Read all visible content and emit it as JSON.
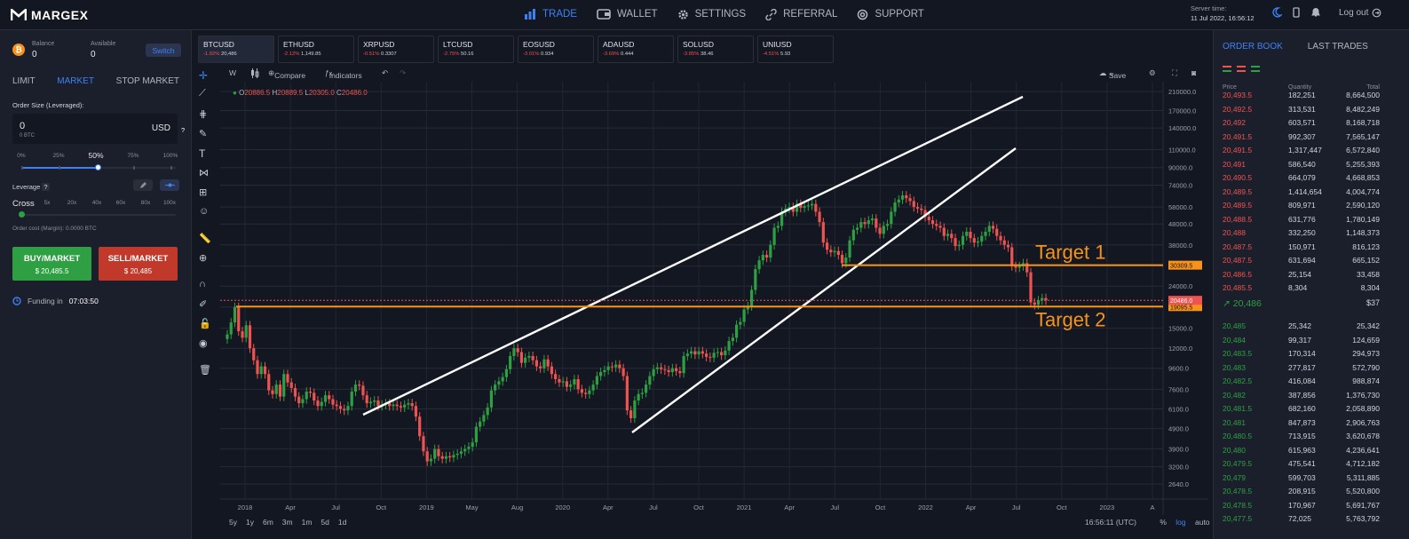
{
  "brand": {
    "name": "MARGEX"
  },
  "nav": [
    {
      "label": "TRADE",
      "icon": "bar-chart-icon",
      "active": true
    },
    {
      "label": "WALLET",
      "icon": "wallet-icon"
    },
    {
      "label": "SETTINGS",
      "icon": "gear-icon"
    },
    {
      "label": "REFERRAL",
      "icon": "link-icon"
    },
    {
      "label": "SUPPORT",
      "icon": "lifebuoy-icon"
    }
  ],
  "server": {
    "label": "Server time:",
    "value": "11 Jul 2022, 16:56:12"
  },
  "logout": "Log out",
  "balance": {
    "balance_label": "Balance",
    "balance_value": "0",
    "available_label": "Available",
    "available_value": "0",
    "switch_label": "Switch",
    "coin": "₿"
  },
  "order_tabs": [
    "LIMIT",
    "MARKET",
    "STOP MARKET"
  ],
  "order": {
    "size_label": "Order Size (Leveraged):",
    "size_value": "0",
    "size_sub": "0 BTC",
    "size_unit": "USD",
    "help": "?",
    "pcts": [
      "0%",
      "25%",
      "50%",
      "75%",
      "100%"
    ],
    "selected_pct": 50,
    "leverage_label": "Leverage",
    "leverage_help": "?",
    "cross_label": "Cross",
    "levs": [
      "5x",
      "20x",
      "40x",
      "60x",
      "80x",
      "100x"
    ],
    "cost_label": "Order cost (Margin): 0.0000 BTC"
  },
  "buy": {
    "label": "BUY/MARKET",
    "price": "$ 20,485.5"
  },
  "sell": {
    "label": "SELL/MARKET",
    "price": "$ 20,485"
  },
  "funding": {
    "label": "Funding in",
    "value": "07:03:50"
  },
  "tickers": [
    {
      "name": "BTCUSD",
      "change": "-1.92%",
      "price": "20,486",
      "active": true
    },
    {
      "name": "ETHUSD",
      "change": "-2.12%",
      "price": "1,149.85"
    },
    {
      "name": "XRPUSD",
      "change": "-0.51%",
      "price": "0.3307"
    },
    {
      "name": "LTCUSD",
      "change": "-2.75%",
      "price": "50.16"
    },
    {
      "name": "EOSUSD",
      "change": "-3.01%",
      "price": "0.934"
    },
    {
      "name": "ADAUSD",
      "change": "-3.69%",
      "price": "0.444"
    },
    {
      "name": "SOLUSD",
      "change": "-3.85%",
      "price": "38.46"
    },
    {
      "name": "UNIUSD",
      "change": "-4.51%",
      "price": "5.93"
    }
  ],
  "toolbar": {
    "interval": "W",
    "compare": "Compare",
    "indicators": "Indicators",
    "save": "Save"
  },
  "ohlc": {
    "o_label": "O",
    "o": "20886.5",
    "h_label": "H",
    "h": "20889.5",
    "l_label": "L",
    "l": "20305.0",
    "c_label": "C",
    "c": "20486.0"
  },
  "chart_data": {
    "type": "candlestick",
    "scale": "log",
    "y_ticks": [
      "210000.0",
      "170000.0",
      "140000.0",
      "110000.0",
      "90000.0",
      "74000.0",
      "58000.0",
      "48000.0",
      "38000.0",
      "30000.0",
      "24000.0",
      "19000.0",
      "15000.0",
      "12000.0",
      "9600.0",
      "7600.0",
      "6100.0",
      "4900.0",
      "3900.0",
      "3200.0",
      "2640.0"
    ],
    "x_ticks": [
      "2018",
      "Apr",
      "Jul",
      "Oct",
      "2019",
      "May",
      "Aug",
      "2020",
      "Apr",
      "Jul",
      "Oct",
      "2021",
      "Apr",
      "Jul",
      "Oct",
      "2022",
      "Apr",
      "Jul",
      "Oct",
      "2023",
      "A"
    ],
    "last_price": "20486.0",
    "levels": [
      {
        "label": "Target 1",
        "value": "30309.5"
      },
      {
        "label": "Target 2",
        "value": "19095.5"
      }
    ],
    "closes": [
      14000,
      16000,
      19000,
      14500,
      13500,
      15500,
      12000,
      10500,
      9000,
      9800,
      9000,
      7500,
      7200,
      8000,
      7000,
      9000,
      8200,
      7700,
      7000,
      6500,
      6800,
      7400,
      7300,
      6700,
      6300,
      6600,
      7100,
      6800,
      6400,
      6300,
      6100,
      6000,
      6300,
      7400,
      8000,
      7900,
      7100,
      6500,
      6600,
      6700,
      6300,
      6400,
      6500,
      6300,
      6400,
      6300,
      6200,
      6400,
      6500,
      6300,
      5600,
      4500,
      3800,
      3400,
      3500,
      3900,
      3600,
      3500,
      3600,
      3550,
      3650,
      3700,
      3800,
      3900,
      4000,
      4200,
      5000,
      5300,
      5700,
      6200,
      7500,
      8000,
      8300,
      8700,
      9500,
      11000,
      12000,
      11500,
      10200,
      10800,
      11000,
      10500,
      9800,
      9600,
      10600,
      9800,
      9000,
      8500,
      8200,
      8300,
      7800,
      8000,
      8500,
      7600,
      7300,
      7200,
      7500,
      8000,
      8800,
      9200,
      9400,
      9800,
      9700,
      10000,
      9600,
      8800,
      6000,
      5500,
      6700,
      7200,
      7300,
      8000,
      8800,
      9500,
      9700,
      9500,
      9400,
      9200,
      9600,
      9300,
      9100,
      11000,
      11300,
      11600,
      11200,
      11600,
      11300,
      10900,
      10800,
      11400,
      11500,
      11100,
      11700,
      13000,
      13500,
      15600,
      16100,
      18500,
      19200,
      23000,
      29000,
      32000,
      34000,
      33000,
      38000,
      46000,
      47000,
      55000,
      57000,
      58000,
      55000,
      60000,
      57500,
      58500,
      59000,
      60000,
      55000,
      49000,
      39000,
      36000,
      35000,
      35500,
      34000,
      31000,
      33000,
      40000,
      45000,
      46000,
      49000,
      48000,
      50000,
      51000,
      46000,
      43000,
      47000,
      48000,
      55000,
      61000,
      63000,
      66000,
      64000,
      62000,
      58000,
      57000,
      56000,
      52000,
      50000,
      48000,
      47000,
      46000,
      42000,
      43000,
      41000,
      37500,
      38000,
      42000,
      44000,
      41000,
      39000,
      39500,
      42000,
      44000,
      47000,
      45500,
      42000,
      40000,
      38000,
      37000,
      30000,
      29500,
      30000,
      31000,
      28000,
      20000,
      19500,
      20500,
      21000,
      20486
    ]
  },
  "bottom": {
    "timeframes": [
      "5y",
      "1y",
      "6m",
      "3m",
      "1m",
      "5d",
      "1d"
    ],
    "clock": "16:56:11 (UTC)",
    "pct": "%",
    "log": "log",
    "auto": "auto"
  },
  "orderbook": {
    "tabs": [
      "ORDER BOOK",
      "LAST TRADES"
    ],
    "headers": [
      "Price",
      "Quantity",
      "Total"
    ],
    "asks": [
      [
        "20,493.5",
        "182,251",
        "8,664,500"
      ],
      [
        "20,492.5",
        "313,531",
        "8,482,249"
      ],
      [
        "20,492",
        "603,571",
        "8,168,718"
      ],
      [
        "20,491.5",
        "992,307",
        "7,565,147"
      ],
      [
        "20,491.5",
        "1,317,447",
        "6,572,840"
      ],
      [
        "20,491",
        "586,540",
        "5,255,393"
      ],
      [
        "20,490.5",
        "664,079",
        "4,668,853"
      ],
      [
        "20,489.5",
        "1,414,654",
        "4,004,774"
      ],
      [
        "20,489.5",
        "809,971",
        "2,590,120"
      ],
      [
        "20,488.5",
        "631,776",
        "1,780,149"
      ],
      [
        "20,488",
        "332,250",
        "1,148,373"
      ],
      [
        "20,487.5",
        "150,971",
        "816,123"
      ],
      [
        "20,487.5",
        "631,694",
        "665,152"
      ],
      [
        "20,486.5",
        "25,154",
        "33,458"
      ],
      [
        "20,485.5",
        "8,304",
        "8,304"
      ]
    ],
    "mid_price": "20,486",
    "mid_usd": "$37",
    "bids": [
      [
        "20,485",
        "25,342",
        "25,342"
      ],
      [
        "20,484",
        "99,317",
        "124,659"
      ],
      [
        "20,483.5",
        "170,314",
        "294,973"
      ],
      [
        "20,483",
        "277,817",
        "572,790"
      ],
      [
        "20,482.5",
        "416,084",
        "988,874"
      ],
      [
        "20,482",
        "387,856",
        "1,376,730"
      ],
      [
        "20,481.5",
        "682,160",
        "2,058,890"
      ],
      [
        "20,481",
        "847,873",
        "2,906,763"
      ],
      [
        "20,480.5",
        "713,915",
        "3,620,678"
      ],
      [
        "20,480",
        "615,963",
        "4,236,641"
      ],
      [
        "20,479.5",
        "475,541",
        "4,712,182"
      ],
      [
        "20,479",
        "599,703",
        "5,311,885"
      ],
      [
        "20,478.5",
        "208,915",
        "5,520,800"
      ],
      [
        "20,478.5",
        "170,967",
        "5,691,767"
      ],
      [
        "20,477.5",
        "72,025",
        "5,763,792"
      ]
    ]
  },
  "colors": {
    "bg": "#131722",
    "panel": "#1b1f2b",
    "accent": "#3c82f6",
    "up": "#2ea043",
    "down": "#ef5350",
    "target": "#f7931a"
  }
}
